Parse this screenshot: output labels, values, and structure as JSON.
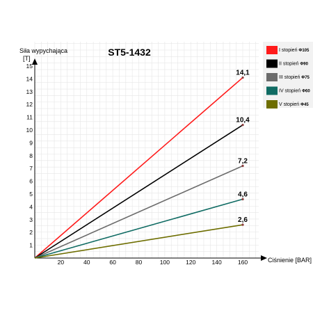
{
  "chart_data": {
    "type": "line",
    "title": "ST5-1432",
    "ylabel": "Siła wypychająca",
    "yunit": "[T]",
    "xlabel": "Ciśnienie [BAR]",
    "xlim": [
      0,
      160
    ],
    "ylim": [
      0,
      15
    ],
    "xticks": [
      20,
      40,
      60,
      80,
      100,
      120,
      140,
      160
    ],
    "yticks": [
      1,
      2,
      3,
      4,
      5,
      6,
      7,
      8,
      9,
      10,
      11,
      12,
      13,
      14,
      15
    ],
    "grid": true,
    "legend_position": "right",
    "series": [
      {
        "name": "I stopień",
        "sub": "Φ105",
        "color": "#ff1a1a",
        "x": [
          0,
          160
        ],
        "y": [
          0,
          14.1
        ],
        "end_label": "14,1"
      },
      {
        "name": "II stopień",
        "sub": "Φ90",
        "color": "#000000",
        "x": [
          0,
          160
        ],
        "y": [
          0,
          10.4
        ],
        "end_label": "10,4"
      },
      {
        "name": "III stopień",
        "sub": "Φ75",
        "color": "#6b6b6b",
        "x": [
          0,
          160
        ],
        "y": [
          0,
          7.2
        ],
        "end_label": "7,2"
      },
      {
        "name": "IV stopień",
        "sub": "Φ60",
        "color": "#0f6b63",
        "x": [
          0,
          160
        ],
        "y": [
          0,
          4.6
        ],
        "end_label": "4,6"
      },
      {
        "name": "V stopień",
        "sub": "Φ45",
        "color": "#6e6e00",
        "x": [
          0,
          160
        ],
        "y": [
          0,
          2.6
        ],
        "end_label": "2,6"
      }
    ]
  }
}
